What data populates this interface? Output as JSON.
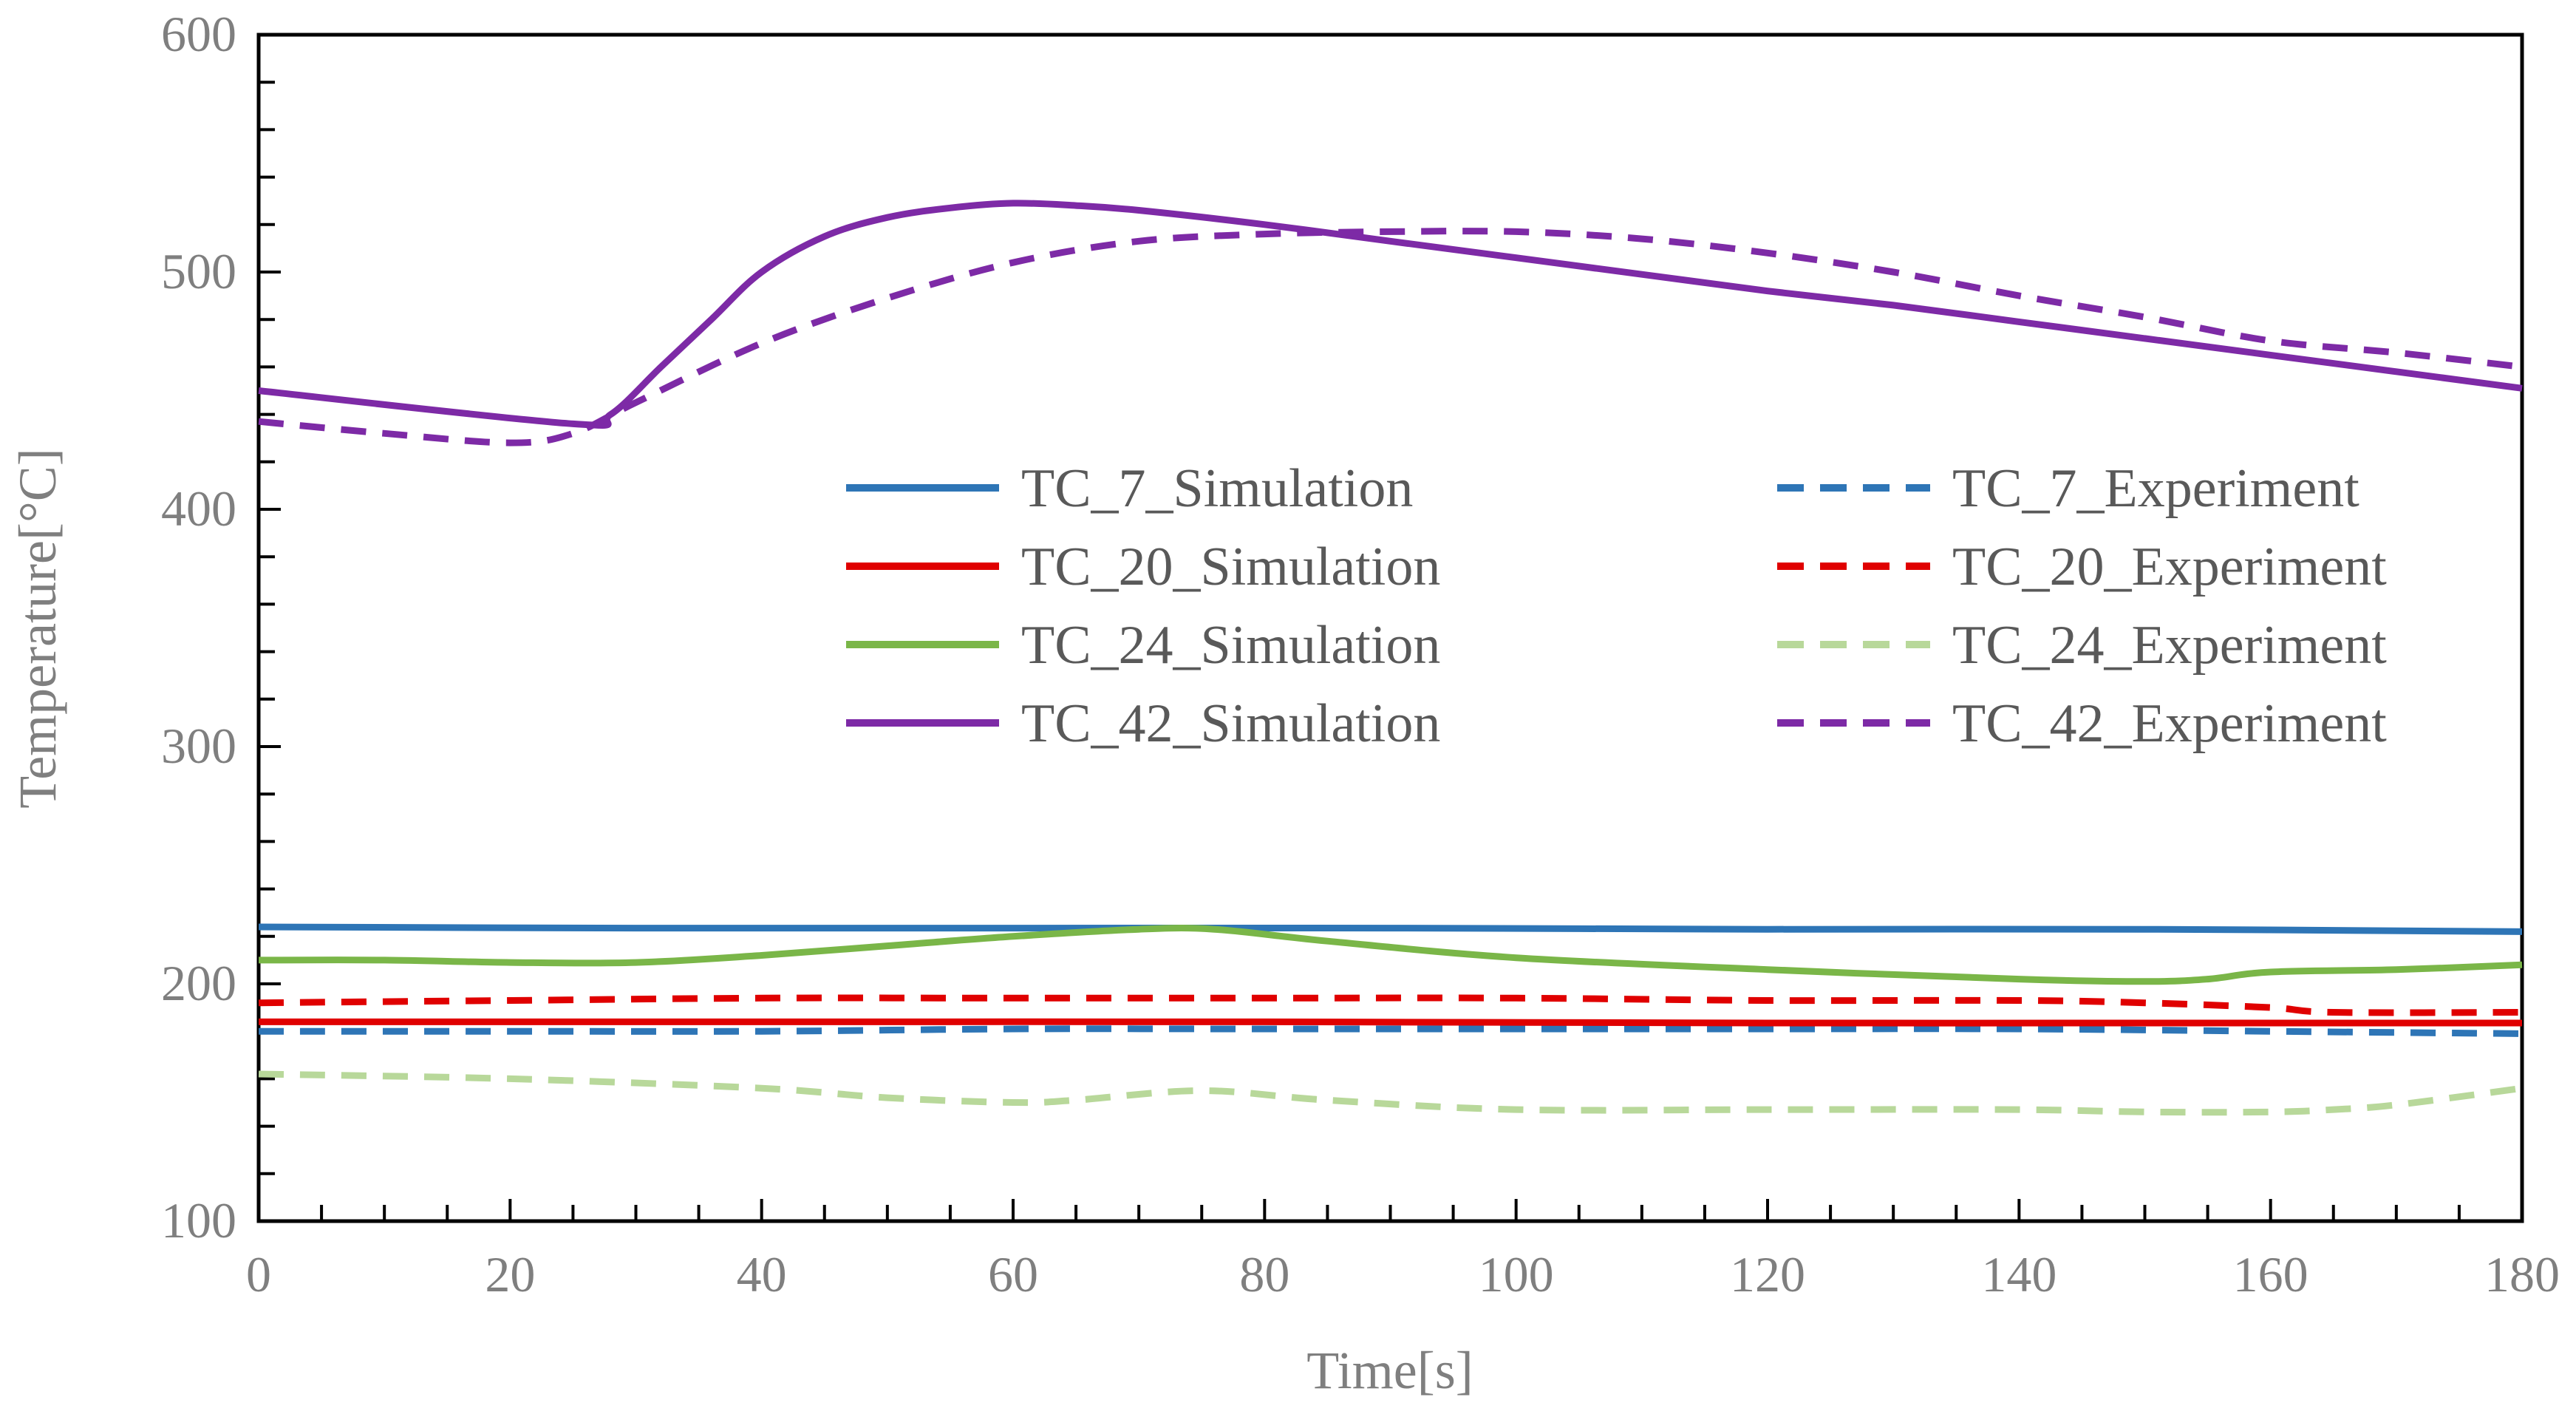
{
  "chart_data": {
    "type": "line",
    "title": "",
    "xlabel": "Time[s]",
    "ylabel": "Temperature[°C]",
    "xlim": [
      0,
      180
    ],
    "ylim": [
      100,
      600
    ],
    "xticks": [
      0,
      20,
      40,
      60,
      80,
      100,
      120,
      140,
      160,
      180
    ],
    "yticks": [
      100,
      200,
      300,
      400,
      500,
      600
    ],
    "x_tick_labels": [
      "0",
      "20",
      "40",
      "60",
      "80",
      "100",
      "120",
      "140",
      "160",
      "180"
    ],
    "y_tick_labels": [
      "100",
      "200",
      "300",
      "400",
      "500",
      "600"
    ],
    "grid": false,
    "legend_position": "center",
    "series": [
      {
        "name": "TC_7_Simulation",
        "color": "#2e75b6",
        "dash": "solid",
        "points": [
          [
            0,
            224
          ],
          [
            30,
            223.5
          ],
          [
            60,
            223.5
          ],
          [
            90,
            223.5
          ],
          [
            120,
            223
          ],
          [
            150,
            223
          ],
          [
            180,
            222
          ]
        ]
      },
      {
        "name": "TC_7_Experiment",
        "color": "#2e75b6",
        "dash": "dash",
        "points": [
          [
            0,
            180
          ],
          [
            20,
            180
          ],
          [
            40,
            180
          ],
          [
            60,
            181
          ],
          [
            80,
            181
          ],
          [
            100,
            181
          ],
          [
            120,
            181
          ],
          [
            140,
            181
          ],
          [
            160,
            180
          ],
          [
            180,
            179
          ]
        ]
      },
      {
        "name": "TC_20_Simulation",
        "color": "#e00000",
        "dash": "solid",
        "points": [
          [
            0,
            184
          ],
          [
            40,
            184
          ],
          [
            80,
            184
          ],
          [
            120,
            183.5
          ],
          [
            160,
            183.5
          ],
          [
            180,
            183.5
          ]
        ]
      },
      {
        "name": "TC_20_Experiment",
        "color": "#e00000",
        "dash": "dash",
        "points": [
          [
            0,
            192
          ],
          [
            20,
            193
          ],
          [
            40,
            194
          ],
          [
            60,
            194
          ],
          [
            80,
            194
          ],
          [
            100,
            194
          ],
          [
            120,
            193
          ],
          [
            140,
            193
          ],
          [
            150,
            192
          ],
          [
            160,
            190
          ],
          [
            165,
            188
          ],
          [
            180,
            188
          ]
        ]
      },
      {
        "name": "TC_24_Simulation",
        "color": "#7ab648",
        "dash": "solid",
        "points": [
          [
            0,
            210
          ],
          [
            10,
            210
          ],
          [
            20,
            209
          ],
          [
            30,
            209
          ],
          [
            40,
            212
          ],
          [
            50,
            216
          ],
          [
            60,
            220
          ],
          [
            70,
            223
          ],
          [
            76,
            223
          ],
          [
            85,
            218
          ],
          [
            100,
            211
          ],
          [
            120,
            206
          ],
          [
            140,
            202
          ],
          [
            150,
            201
          ],
          [
            155,
            202
          ],
          [
            160,
            205
          ],
          [
            170,
            206
          ],
          [
            180,
            208
          ]
        ]
      },
      {
        "name": "TC_24_Experiment",
        "color": "#b8d89a",
        "dash": "dash",
        "points": [
          [
            0,
            162
          ],
          [
            20,
            160
          ],
          [
            40,
            156
          ],
          [
            50,
            152
          ],
          [
            60,
            150
          ],
          [
            65,
            151
          ],
          [
            75,
            155
          ],
          [
            85,
            151
          ],
          [
            100,
            147
          ],
          [
            120,
            147
          ],
          [
            140,
            147
          ],
          [
            150,
            146
          ],
          [
            160,
            146
          ],
          [
            165,
            147
          ],
          [
            170,
            149
          ],
          [
            180,
            156
          ]
        ]
      },
      {
        "name": "TC_42_Simulation",
        "color": "#7d2aa6",
        "dash": "solid",
        "points": [
          [
            0,
            450
          ],
          [
            25,
            436
          ],
          [
            28,
            440
          ],
          [
            32,
            460
          ],
          [
            36,
            480
          ],
          [
            40,
            500
          ],
          [
            45,
            515
          ],
          [
            50,
            523
          ],
          [
            55,
            527
          ],
          [
            60,
            529
          ],
          [
            65,
            528
          ],
          [
            70,
            526
          ],
          [
            80,
            520
          ],
          [
            90,
            513
          ],
          [
            100,
            506
          ],
          [
            110,
            499
          ],
          [
            120,
            492
          ],
          [
            130,
            486
          ],
          [
            140,
            479
          ],
          [
            150,
            472
          ],
          [
            160,
            465
          ],
          [
            170,
            458
          ],
          [
            180,
            451
          ]
        ]
      },
      {
        "name": "TC_42_Experiment",
        "color": "#7d2aa6",
        "dash": "dash",
        "points": [
          [
            0,
            437
          ],
          [
            10,
            432
          ],
          [
            20,
            428
          ],
          [
            25,
            432
          ],
          [
            30,
            445
          ],
          [
            40,
            470
          ],
          [
            50,
            489
          ],
          [
            60,
            504
          ],
          [
            70,
            513
          ],
          [
            80,
            516
          ],
          [
            90,
            517
          ],
          [
            100,
            517
          ],
          [
            110,
            514
          ],
          [
            120,
            508
          ],
          [
            130,
            500
          ],
          [
            140,
            490
          ],
          [
            150,
            481
          ],
          [
            160,
            471
          ],
          [
            170,
            466
          ],
          [
            180,
            460
          ]
        ]
      }
    ]
  }
}
